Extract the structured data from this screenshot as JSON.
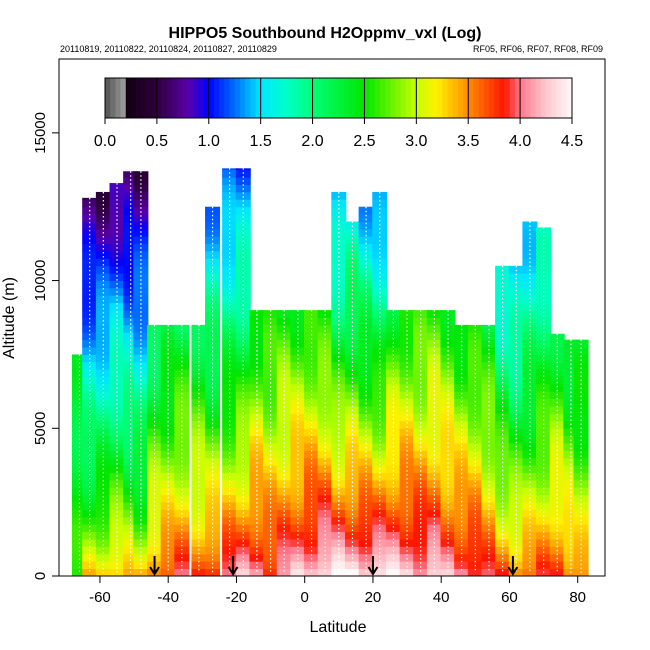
{
  "chart_data": {
    "type": "heatmap",
    "title": "HIPPO5 Southbound H2Oppmv_vxl (Log)",
    "subtitle_left": "20110819, 20110822, 20110824, 20110827, 20110829",
    "subtitle_right": "RF05, RF06, RF07, RF08, RF09",
    "xlabel": "Latitude",
    "ylabel": "Altitude (m)",
    "xlim": [
      -72,
      88
    ],
    "ylim": [
      0,
      17500
    ],
    "x_ticks": [
      -60,
      -40,
      -20,
      0,
      20,
      40,
      60,
      80
    ],
    "y_ticks": [
      0,
      5000,
      10000,
      15000
    ],
    "colorbar": {
      "ticks": [
        0.0,
        0.5,
        1.0,
        1.5,
        2.0,
        2.5,
        3.0,
        3.5,
        4.0,
        4.5
      ],
      "tick_labels": [
        "0.0",
        "0.5",
        "1.0",
        "1.5",
        "2.0",
        "2.5",
        "3.0",
        "3.5",
        "4.0",
        "4.5"
      ],
      "range": [
        0,
        4.5
      ]
    },
    "markers_lat": [
      -44,
      -21,
      20,
      61
    ],
    "column_width_deg": 1.8,
    "profiles": [
      {
        "lat": -66,
        "top": 7500,
        "surface": 2.6,
        "top_value": 2.2
      },
      {
        "lat": -63,
        "top": 12800,
        "surface": 3.3,
        "top_value": 0.6
      },
      {
        "lat": -59,
        "top": 13000,
        "surface": 3.4,
        "top_value": 0.6
      },
      {
        "lat": -55,
        "top": 13300,
        "surface": 3.5,
        "top_value": 0.7
      },
      {
        "lat": -51,
        "top": 13700,
        "surface": 3.4,
        "top_value": 0.6
      },
      {
        "lat": -48,
        "top": 13700,
        "surface": 3.3,
        "top_value": 0.6
      },
      {
        "lat": -44,
        "top": 8500,
        "surface": 3.7,
        "top_value": 2.0
      },
      {
        "lat": -40,
        "top": 8500,
        "surface": 3.8,
        "top_value": 2.1
      },
      {
        "lat": -36,
        "top": 8500,
        "surface": 3.9,
        "top_value": 2.2
      },
      {
        "lat": -31,
        "top": 8500,
        "surface": 3.8,
        "top_value": 2.2
      },
      {
        "lat": -27,
        "top": 12500,
        "surface": 4.0,
        "top_value": 1.3
      },
      {
        "lat": -22,
        "top": 13800,
        "surface": 4.1,
        "top_value": 1.1
      },
      {
        "lat": -18,
        "top": 13800,
        "surface": 4.2,
        "top_value": 1.2
      },
      {
        "lat": -14,
        "top": 9000,
        "surface": 4.2,
        "top_value": 2.4
      },
      {
        "lat": -10,
        "top": 9000,
        "surface": 4.0,
        "top_value": 2.4
      },
      {
        "lat": -6,
        "top": 9000,
        "surface": 4.1,
        "top_value": 2.5
      },
      {
        "lat": -2,
        "top": 9000,
        "surface": 4.3,
        "top_value": 2.5
      },
      {
        "lat": 2,
        "top": 9000,
        "surface": 4.4,
        "top_value": 2.5
      },
      {
        "lat": 6,
        "top": 9000,
        "surface": 4.5,
        "top_value": 2.4
      },
      {
        "lat": 10,
        "top": 13000,
        "surface": 4.5,
        "top_value": 1.3
      },
      {
        "lat": 14,
        "top": 12000,
        "surface": 4.5,
        "top_value": 1.6
      },
      {
        "lat": 18,
        "top": 12500,
        "surface": 4.5,
        "top_value": 1.4
      },
      {
        "lat": 22,
        "top": 13000,
        "surface": 4.5,
        "top_value": 1.2
      },
      {
        "lat": 26,
        "top": 9000,
        "surface": 4.4,
        "top_value": 2.4
      },
      {
        "lat": 30,
        "top": 9000,
        "surface": 4.4,
        "top_value": 2.5
      },
      {
        "lat": 34,
        "top": 9000,
        "surface": 4.3,
        "top_value": 2.5
      },
      {
        "lat": 38,
        "top": 9000,
        "surface": 4.3,
        "top_value": 2.6
      },
      {
        "lat": 42,
        "top": 9000,
        "surface": 4.2,
        "top_value": 2.5
      },
      {
        "lat": 46,
        "top": 8500,
        "surface": 4.2,
        "top_value": 2.4
      },
      {
        "lat": 50,
        "top": 8500,
        "surface": 4.1,
        "top_value": 2.4
      },
      {
        "lat": 54,
        "top": 8500,
        "surface": 3.9,
        "top_value": 2.3
      },
      {
        "lat": 58,
        "top": 10500,
        "surface": 3.8,
        "top_value": 1.5
      },
      {
        "lat": 62,
        "top": 10500,
        "surface": 3.7,
        "top_value": 1.4
      },
      {
        "lat": 66,
        "top": 12000,
        "surface": 3.7,
        "top_value": 1.4
      },
      {
        "lat": 70,
        "top": 11800,
        "surface": 3.8,
        "top_value": 1.6
      },
      {
        "lat": 74,
        "top": 8200,
        "surface": 3.9,
        "top_value": 2.3
      },
      {
        "lat": 78,
        "top": 8000,
        "surface": 3.7,
        "top_value": 2.2
      },
      {
        "lat": 81,
        "top": 8000,
        "surface": 3.5,
        "top_value": 2.2
      }
    ]
  }
}
